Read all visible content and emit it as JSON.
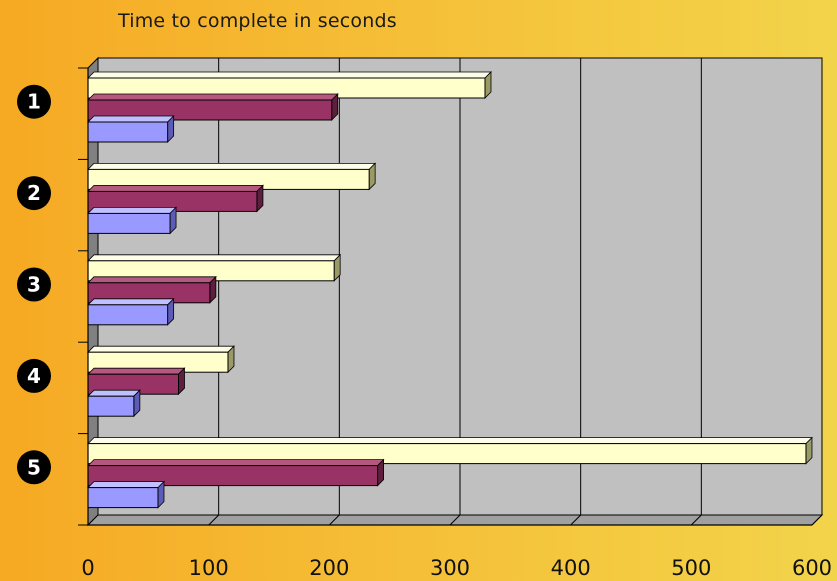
{
  "chart_data": {
    "type": "bar",
    "orientation": "horizontal",
    "title": "Time to complete in seconds",
    "categories": [
      "1",
      "2",
      "3",
      "4",
      "5"
    ],
    "series": [
      {
        "values": [
          329,
          233,
          204,
          116,
          595
        ]
      },
      {
        "values": [
          202,
          140,
          101,
          75,
          240
        ]
      },
      {
        "values": [
          66,
          68,
          66,
          38,
          58
        ]
      }
    ],
    "xlim": [
      0,
      600
    ],
    "x_ticks": [
      "0",
      "100",
      "200",
      "300",
      "400",
      "500",
      "600"
    ],
    "grid": true,
    "colors": {
      "series_front": [
        "#ffffcc",
        "#993366",
        "#9999ff"
      ],
      "series_side": [
        "#9a9a66",
        "#5e1e3d",
        "#5c5cb8"
      ],
      "series_top": [
        "#fdfdea",
        "#b5587f",
        "#c0c0ff"
      ],
      "plot_back": "#c0c0c0",
      "plot_wall": "#808080",
      "plot_floor": "#a0a0a0",
      "grid": "#000000"
    }
  }
}
